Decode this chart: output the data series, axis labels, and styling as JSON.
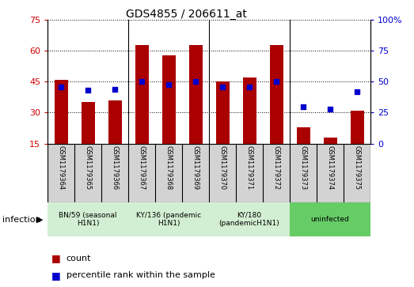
{
  "title": "GDS4855 / 206611_at",
  "samples": [
    "GSM1179364",
    "GSM1179365",
    "GSM1179366",
    "GSM1179367",
    "GSM1179368",
    "GSM1179369",
    "GSM1179370",
    "GSM1179371",
    "GSM1179372",
    "GSM1179373",
    "GSM1179374",
    "GSM1179375"
  ],
  "bar_values": [
    46,
    35,
    36,
    63,
    58,
    63,
    45,
    47,
    63,
    23,
    18,
    31
  ],
  "dot_values": [
    46,
    43,
    44,
    50,
    48,
    50,
    46,
    46,
    50,
    30,
    28,
    42
  ],
  "bar_bottom": 15,
  "ylim_left": [
    15,
    75
  ],
  "ylim_right": [
    0,
    100
  ],
  "yticks_left": [
    15,
    30,
    45,
    60,
    75
  ],
  "yticks_right": [
    0,
    25,
    50,
    75,
    100
  ],
  "bar_color": "#AA0000",
  "dot_color": "#0000CC",
  "groups": [
    {
      "label": "BN/59 (seasonal\nH1N1)",
      "start": 0,
      "end": 3,
      "color": "#d3efd3"
    },
    {
      "label": "KY/136 (pandemic\nH1N1)",
      "start": 3,
      "end": 6,
      "color": "#d3efd3"
    },
    {
      "label": "KY/180\n(pandemicH1N1)",
      "start": 6,
      "end": 9,
      "color": "#d3efd3"
    },
    {
      "label": "uninfected",
      "start": 9,
      "end": 12,
      "color": "#66CC66"
    }
  ],
  "sample_bg_color": "#d3d3d3",
  "infection_label": "infection",
  "legend_count_label": "count",
  "legend_percentile_label": "percentile rank within the sample",
  "right_yaxis_color": "#0000CC",
  "left_yaxis_color": "#CC0000"
}
